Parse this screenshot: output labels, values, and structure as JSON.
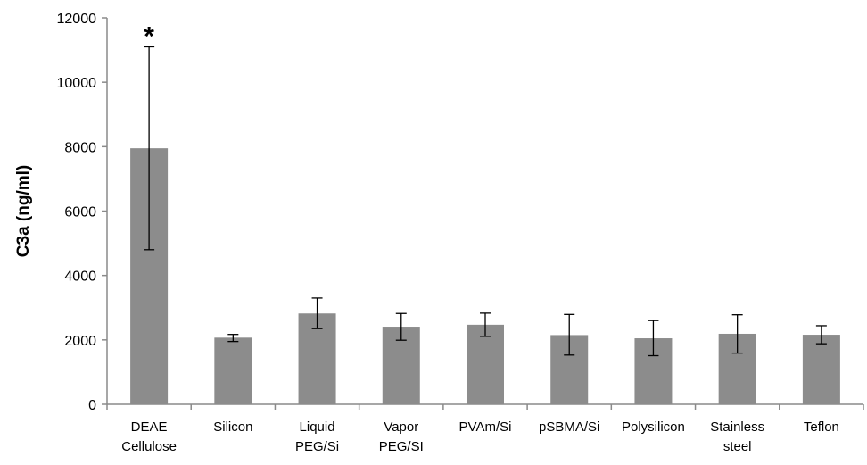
{
  "chart_data": {
    "type": "bar",
    "title": "",
    "xlabel": "",
    "ylabel": "C3a  (ng/ml)",
    "ylim": [
      0,
      12000
    ],
    "yticks": [
      0,
      2000,
      4000,
      6000,
      8000,
      10000,
      12000
    ],
    "grid": false,
    "legend": "none",
    "categories": [
      [
        "DEAE",
        "Cellulose"
      ],
      [
        "Silicon"
      ],
      [
        "Liquid",
        "PEG/Si"
      ],
      [
        "Vapor",
        "PEG/SI"
      ],
      [
        "PVAm/Si"
      ],
      [
        "pSBMA/Si"
      ],
      [
        "Polysilicon"
      ],
      [
        "Stainless",
        "steel"
      ],
      [
        "Teflon"
      ]
    ],
    "values": [
      7950,
      2070,
      2820,
      2410,
      2470,
      2150,
      2050,
      2190,
      2160
    ],
    "error_bars": [
      [
        4800,
        11100
      ],
      [
        1950,
        2170
      ],
      [
        2350,
        3300
      ],
      [
        1990,
        2820
      ],
      [
        2110,
        2830
      ],
      [
        1530,
        2790
      ],
      [
        1510,
        2600
      ],
      [
        1590,
        2780
      ],
      [
        1880,
        2440
      ]
    ],
    "annotations": [
      {
        "category_index": 0,
        "text": "*"
      }
    ],
    "colors": {
      "bar": "#8c8c8c",
      "axis": "#8a8a8a",
      "error_bar": "#000000",
      "text": "#000000"
    }
  }
}
